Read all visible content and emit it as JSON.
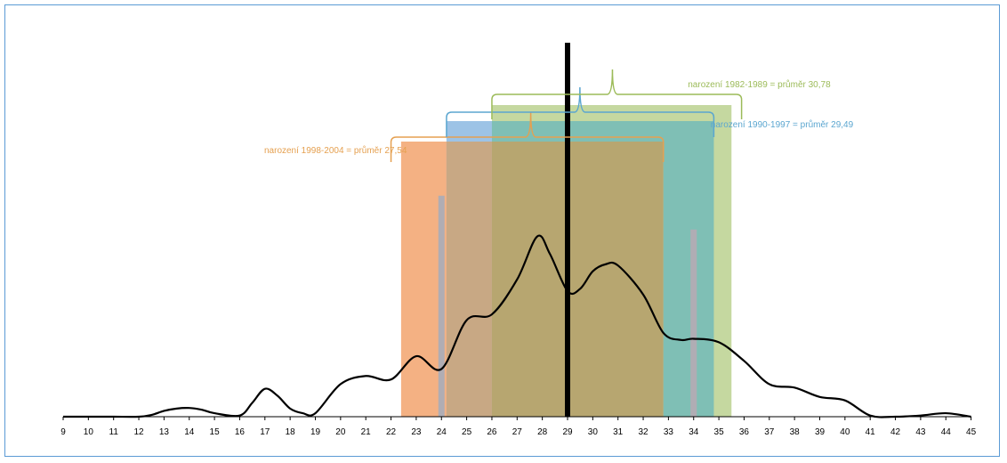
{
  "colors": {
    "orange": "#f4b183",
    "blue": "#9dc3e6",
    "green": "#c5d8a0",
    "teal": "#7fbfb5",
    "brown": "#c8a884",
    "olive": "#b7a670",
    "mean_marker": "#b0adb4",
    "axis": "#000000",
    "frame": "#5b9bd5",
    "label_orange": "#e5a050",
    "label_blue": "#5ba6d0",
    "label_green": "#9cbb59"
  },
  "chart_data": {
    "type": "line",
    "title": "",
    "xlabel": "",
    "ylabel": "",
    "x_ticks": [
      9,
      10,
      11,
      12,
      13,
      14,
      15,
      16,
      17,
      18,
      19,
      20,
      21,
      22,
      23,
      24,
      25,
      26,
      27,
      28,
      29,
      30,
      31,
      32,
      33,
      34,
      35,
      36,
      37,
      38,
      39,
      40,
      41,
      42,
      43,
      44,
      45
    ],
    "xlim": [
      9,
      45
    ],
    "curve": {
      "name": "",
      "points": [
        [
          9,
          0
        ],
        [
          10,
          0
        ],
        [
          11,
          0
        ],
        [
          12,
          0
        ],
        [
          12.5,
          1.5
        ],
        [
          13,
          5
        ],
        [
          13.5,
          7
        ],
        [
          14,
          7.5
        ],
        [
          14.5,
          6
        ],
        [
          15,
          3
        ],
        [
          16,
          1
        ],
        [
          16.5,
          12
        ],
        [
          17,
          24
        ],
        [
          17.5,
          18
        ],
        [
          18,
          7
        ],
        [
          18.5,
          3
        ],
        [
          19,
          3
        ],
        [
          20,
          28
        ],
        [
          21,
          35
        ],
        [
          22,
          32
        ],
        [
          23,
          52
        ],
        [
          24,
          41
        ],
        [
          25,
          83
        ],
        [
          26,
          88
        ],
        [
          27,
          118
        ],
        [
          27.8,
          155
        ],
        [
          28.3,
          140
        ],
        [
          29,
          108
        ],
        [
          29.5,
          110
        ],
        [
          30,
          125
        ],
        [
          30.5,
          131
        ],
        [
          31,
          130
        ],
        [
          32,
          105
        ],
        [
          32.8,
          72
        ],
        [
          33.5,
          66
        ],
        [
          34,
          67
        ],
        [
          35,
          64
        ],
        [
          36,
          48
        ],
        [
          37,
          28
        ],
        [
          38,
          25
        ],
        [
          39,
          17
        ],
        [
          40,
          14
        ],
        [
          41,
          1
        ],
        [
          42,
          0
        ],
        [
          43,
          1
        ],
        [
          44,
          3
        ],
        [
          45,
          0
        ]
      ],
      "ylim": [
        0,
        160
      ]
    },
    "mean_line": 29,
    "ranges": [
      {
        "label": "narození 1998-2004 = průměr 27,54",
        "from": 22.4,
        "to": 32.8,
        "mean": 27.54
      },
      {
        "label": "narození 1990-1997 = průměr 29,49",
        "from": 24.2,
        "to": 34.8,
        "mean": 29.49
      },
      {
        "label": "narození 1982-1989 = průměr 30,78",
        "from": 26,
        "to": 35.5,
        "mean": 30.78
      }
    ],
    "markers": [
      {
        "x": 24,
        "level": 0.85
      },
      {
        "x": 34,
        "level": 0.72
      }
    ],
    "grid": false,
    "legend": "none"
  }
}
